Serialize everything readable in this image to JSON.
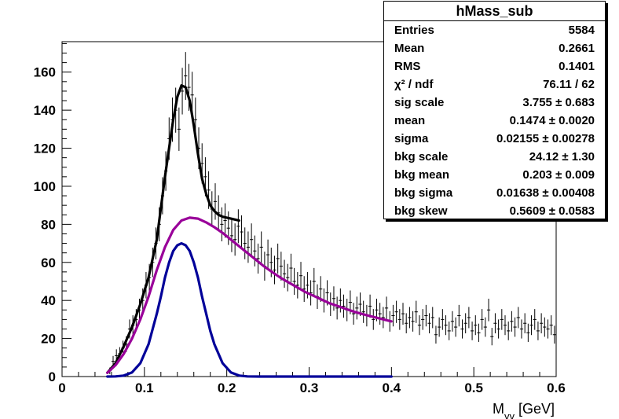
{
  "chart_data": {
    "type": "scatter",
    "title": "",
    "xlabel": "M_{γγ} [GeV]",
    "ylabel": "",
    "xlim": [
      0,
      0.6
    ],
    "ylim": [
      0,
      176
    ],
    "xticks": [
      "0",
      "0.1",
      "0.2",
      "0.3",
      "0.4",
      "0.5",
      "0.6"
    ],
    "yticks": [
      "0",
      "20",
      "40",
      "60",
      "80",
      "100",
      "120",
      "140",
      "160"
    ],
    "xtick_values": [
      0,
      0.1,
      0.2,
      0.3,
      0.4,
      0.5,
      0.6
    ],
    "ytick_values": [
      0,
      20,
      40,
      60,
      80,
      100,
      120,
      140,
      160
    ],
    "grid": false,
    "colors": {
      "data": "#000000",
      "total_fit": "#000000",
      "background_fit": "#990099",
      "signal_fit": "#000099"
    },
    "series": [
      {
        "kind": "histogram-points",
        "bin_width": 0.004,
        "x": [
          0.058,
          0.062,
          0.066,
          0.07,
          0.074,
          0.078,
          0.082,
          0.086,
          0.09,
          0.094,
          0.098,
          0.102,
          0.106,
          0.11,
          0.114,
          0.118,
          0.122,
          0.126,
          0.13,
          0.134,
          0.138,
          0.142,
          0.146,
          0.15,
          0.154,
          0.158,
          0.162,
          0.166,
          0.17,
          0.174,
          0.178,
          0.182,
          0.186,
          0.19,
          0.194,
          0.198,
          0.202,
          0.206,
          0.21,
          0.214,
          0.218,
          0.222,
          0.226,
          0.23,
          0.234,
          0.238,
          0.242,
          0.246,
          0.25,
          0.254,
          0.258,
          0.262,
          0.266,
          0.27,
          0.274,
          0.278,
          0.282,
          0.286,
          0.29,
          0.294,
          0.298,
          0.302,
          0.306,
          0.31,
          0.314,
          0.318,
          0.322,
          0.326,
          0.33,
          0.334,
          0.338,
          0.342,
          0.346,
          0.35,
          0.354,
          0.358,
          0.362,
          0.366,
          0.37,
          0.374,
          0.378,
          0.382,
          0.386,
          0.39,
          0.394,
          0.398,
          0.402,
          0.406,
          0.41,
          0.414,
          0.418,
          0.422,
          0.426,
          0.43,
          0.434,
          0.438,
          0.442,
          0.446,
          0.45,
          0.454,
          0.458,
          0.462,
          0.466,
          0.47,
          0.474,
          0.478,
          0.482,
          0.486,
          0.49,
          0.494,
          0.498,
          0.502,
          0.506,
          0.51,
          0.514,
          0.518,
          0.522,
          0.526,
          0.53,
          0.534,
          0.538,
          0.542,
          0.546,
          0.55,
          0.554,
          0.558,
          0.562,
          0.566,
          0.57,
          0.574,
          0.578,
          0.582,
          0.586,
          0.59,
          0.594,
          0.598
        ],
        "y": [
          3,
          8,
          11,
          12,
          15,
          17,
          25,
          27,
          30,
          35,
          40,
          48,
          52,
          60,
          70,
          80,
          95,
          108,
          125,
          135,
          140,
          130,
          150,
          158,
          152,
          148,
          135,
          120,
          112,
          105,
          98,
          88,
          92,
          86,
          80,
          82,
          78,
          74,
          72,
          79,
          76,
          70,
          68,
          72,
          66,
          62,
          68,
          58,
          64,
          60,
          56,
          62,
          58,
          54,
          52,
          57,
          50,
          48,
          53,
          46,
          48,
          44,
          50,
          42,
          46,
          40,
          44,
          38,
          41,
          36,
          40,
          37,
          35,
          39,
          33,
          36,
          38,
          34,
          32,
          37,
          30,
          35,
          33,
          31,
          36,
          29,
          32,
          34,
          30,
          33,
          28,
          31,
          29,
          34,
          27,
          30,
          32,
          28,
          31,
          22,
          26,
          30,
          27,
          24,
          29,
          26,
          32,
          25,
          28,
          31,
          24,
          27,
          23,
          30,
          26,
          35,
          21,
          28,
          25,
          30,
          27,
          24,
          29,
          26,
          31,
          25,
          28,
          23,
          27,
          30,
          24,
          28,
          26,
          25,
          27,
          22
        ],
        "yerr_sqrt": true
      },
      {
        "kind": "fit-curve",
        "role": "total",
        "x": [
          0.055,
          0.065,
          0.075,
          0.085,
          0.095,
          0.105,
          0.115,
          0.125,
          0.135,
          0.14,
          0.145,
          0.15,
          0.155,
          0.16,
          0.165,
          0.17,
          0.175,
          0.18,
          0.185,
          0.19,
          0.195,
          0.2,
          0.205,
          0.21,
          0.215
        ],
        "y": [
          2,
          7,
          16,
          26,
          38,
          52,
          72,
          105,
          135,
          147,
          153,
          152,
          145,
          132,
          117,
          104,
          96,
          90,
          87,
          85,
          84,
          83.5,
          83,
          82.5,
          82
        ]
      },
      {
        "kind": "fit-curve",
        "role": "background",
        "x": [
          0.055,
          0.065,
          0.075,
          0.085,
          0.095,
          0.105,
          0.115,
          0.125,
          0.135,
          0.145,
          0.155,
          0.165,
          0.175,
          0.185,
          0.195,
          0.205,
          0.215,
          0.225,
          0.235,
          0.245,
          0.255,
          0.265,
          0.275,
          0.285,
          0.295,
          0.305,
          0.315,
          0.325,
          0.335,
          0.345,
          0.355,
          0.365,
          0.375,
          0.385,
          0.395,
          0.4
        ],
        "y": [
          2,
          6,
          12,
          20,
          30,
          42,
          56,
          68,
          77,
          82,
          83.5,
          83,
          81,
          78.5,
          75.5,
          72,
          68.5,
          65,
          61.5,
          58,
          55,
          52,
          49.5,
          47,
          44.5,
          42.5,
          40.5,
          38.5,
          37,
          35.5,
          34,
          32.8,
          31.7,
          30.6,
          29.5,
          29
        ]
      },
      {
        "kind": "fit-curve",
        "role": "signal",
        "x": [
          0.055,
          0.065,
          0.075,
          0.085,
          0.095,
          0.105,
          0.115,
          0.12,
          0.125,
          0.13,
          0.135,
          0.14,
          0.145,
          0.15,
          0.155,
          0.16,
          0.165,
          0.17,
          0.175,
          0.18,
          0.185,
          0.195,
          0.205,
          0.215,
          0.225,
          0.24,
          0.26,
          0.3,
          0.35,
          0.4
        ],
        "y": [
          0,
          0.1,
          0.5,
          2.2,
          7,
          17,
          33,
          42,
          52,
          60,
          66,
          69,
          70,
          69,
          66,
          60,
          52,
          42,
          33,
          24,
          17,
          7,
          2.2,
          0.5,
          0.1,
          0,
          0,
          0,
          0,
          0
        ]
      }
    ]
  },
  "statbox": {
    "title": "hMass_sub",
    "rows": [
      {
        "label": "Entries",
        "value": "5584"
      },
      {
        "label": "Mean",
        "value": "0.2661"
      },
      {
        "label": "RMS",
        "value": "0.1401"
      },
      {
        "label": "χ² / ndf",
        "value": "76.11 / 62"
      },
      {
        "label": "sig scale",
        "value": "3.755 ± 0.683"
      },
      {
        "label": "mean",
        "value": "0.1474 ± 0.0020"
      },
      {
        "label": "sigma",
        "value": "0.02155 ± 0.00278"
      },
      {
        "label": "bkg scale",
        "value": "24.12 ± 1.30"
      },
      {
        "label": "bkg mean",
        "value": "0.203 ± 0.009"
      },
      {
        "label": "bkg sigma",
        "value": "0.01638 ± 0.00408"
      },
      {
        "label": "bkg skew",
        "value": "0.5609 ± 0.0583"
      }
    ]
  }
}
